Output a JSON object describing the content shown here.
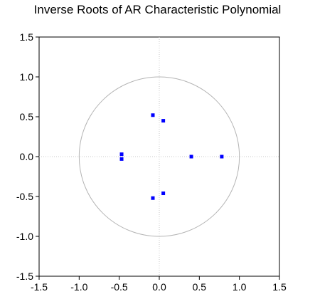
{
  "chart_data": {
    "type": "scatter",
    "title": "Inverse Roots of AR Characteristic Polynomial",
    "xlabel": "",
    "ylabel": "",
    "xlim": [
      -1.5,
      1.5
    ],
    "ylim": [
      -1.5,
      1.5
    ],
    "x_ticks": [
      "-1.5",
      "-1.0",
      "-0.5",
      "0.0",
      "0.5",
      "1.0",
      "1.5"
    ],
    "y_ticks": [
      "1.5",
      "1.0",
      "0.5",
      "0.0",
      "-0.5",
      "-1.0",
      "-1.5"
    ],
    "x_tick_values": [
      -1.5,
      -1.0,
      -0.5,
      0.0,
      0.5,
      1.0,
      1.5
    ],
    "y_tick_values": [
      1.5,
      1.0,
      0.5,
      0.0,
      -0.5,
      -1.0,
      -1.5
    ],
    "unit_circle": true,
    "zero_lines": true,
    "series": [
      {
        "points": [
          {
            "x": -0.08,
            "y": 0.52
          },
          {
            "x": 0.05,
            "y": 0.45
          },
          {
            "x": -0.47,
            "y": 0.03
          },
          {
            "x": -0.47,
            "y": -0.03
          },
          {
            "x": 0.4,
            "y": 0.0
          },
          {
            "x": 0.78,
            "y": 0.0
          },
          {
            "x": -0.08,
            "y": -0.52
          },
          {
            "x": 0.05,
            "y": -0.46
          }
        ],
        "color": "#0000ff"
      }
    ],
    "colors": {
      "points": "#0000ff",
      "circle": "#b4b4b4",
      "zero_lines": "#c8c8c8",
      "frame": "#000000"
    }
  }
}
